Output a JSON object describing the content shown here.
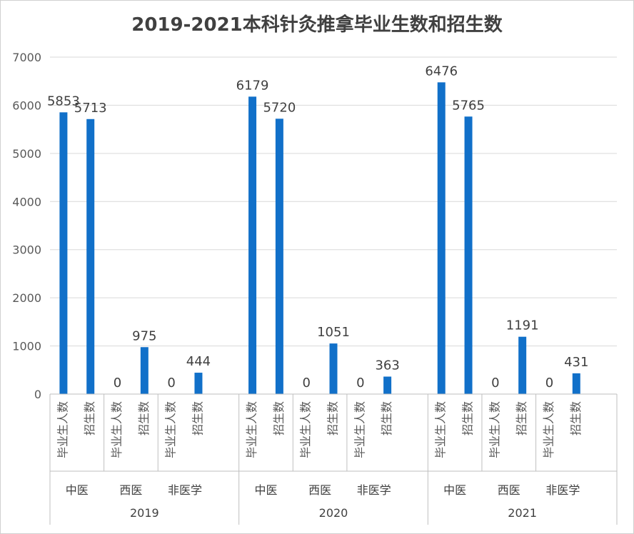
{
  "chart_data": {
    "type": "bar",
    "title": "2019-2021本科针灸推拿毕业生数和招生数",
    "ylim": [
      0,
      7000
    ],
    "yticks": [
      0,
      1000,
      2000,
      3000,
      4000,
      5000,
      6000,
      7000
    ],
    "grid": true,
    "groups": [
      {
        "year": "2019",
        "categories": [
          {
            "name": "中医",
            "bars": [
              {
                "label": "毕业生人数",
                "value": 5853
              },
              {
                "label": "招生数",
                "value": 5713
              }
            ]
          },
          {
            "name": "西医",
            "bars": [
              {
                "label": "毕业生人数",
                "value": 0
              },
              {
                "label": "招生数",
                "value": 975
              }
            ]
          },
          {
            "name": "非医学",
            "bars": [
              {
                "label": "毕业生人数",
                "value": 0
              },
              {
                "label": "招生数",
                "value": 444
              }
            ]
          }
        ]
      },
      {
        "year": "2020",
        "categories": [
          {
            "name": "中医",
            "bars": [
              {
                "label": "毕业生人数",
                "value": 6179
              },
              {
                "label": "招生数",
                "value": 5720
              }
            ]
          },
          {
            "name": "西医",
            "bars": [
              {
                "label": "毕业生人数",
                "value": 0
              },
              {
                "label": "招生数",
                "value": 1051
              }
            ]
          },
          {
            "name": "非医学",
            "bars": [
              {
                "label": "毕业生人数",
                "value": 0
              },
              {
                "label": "招生数",
                "value": 363
              }
            ]
          }
        ]
      },
      {
        "year": "2021",
        "categories": [
          {
            "name": "中医",
            "bars": [
              {
                "label": "毕业生人数",
                "value": 6476
              },
              {
                "label": "招生数",
                "value": 5765
              }
            ]
          },
          {
            "name": "西医",
            "bars": [
              {
                "label": "毕业生人数",
                "value": 0
              },
              {
                "label": "招生数",
                "value": 1191
              }
            ]
          },
          {
            "name": "非医学",
            "bars": [
              {
                "label": "毕业生人数",
                "value": 0
              },
              {
                "label": "招生数",
                "value": 431
              }
            ]
          }
        ]
      }
    ],
    "colors": {
      "bar": "#1170c9",
      "grid": "#d9d9d9",
      "axis": "#bfbfbf"
    }
  }
}
